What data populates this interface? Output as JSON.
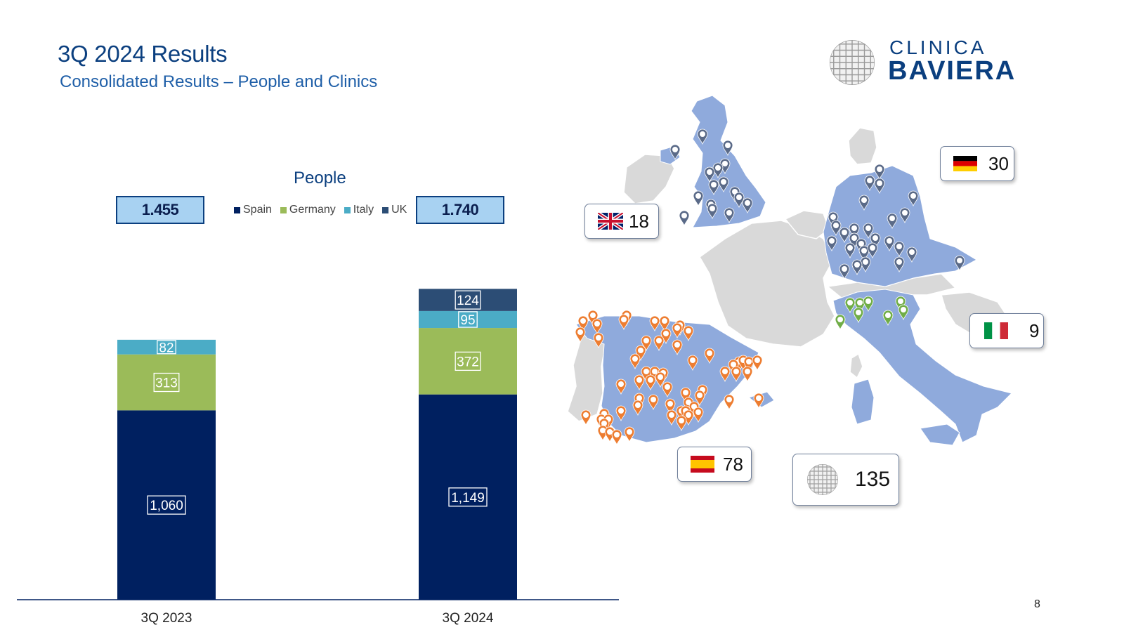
{
  "header": {
    "title": "3Q 2024 Results",
    "subtitle": "Consolidated Results – People and Clinics"
  },
  "logo": {
    "line1": "CLINICA",
    "line2": "BAVIERA"
  },
  "totals": [
    "1.455",
    "1.740"
  ],
  "colors": {
    "spain": "#002060",
    "germany": "#9bbb59",
    "italy": "#4bacc6",
    "uk": "#2c4d75",
    "map_land": "#8faadc",
    "map_other": "#d9d9d9",
    "title": "#0b3f7f"
  },
  "chart_data": {
    "type": "bar",
    "stacked": true,
    "title": "People",
    "categories": [
      "3Q 2023",
      "3Q 2024"
    ],
    "series": [
      {
        "name": "Spain",
        "color": "#002060",
        "values": [
          1060,
          1149
        ],
        "labels": [
          "1,060",
          "1,149"
        ]
      },
      {
        "name": "Germany",
        "color": "#9bbb59",
        "values": [
          313,
          372
        ],
        "labels": [
          "313",
          "372"
        ]
      },
      {
        "name": "Italy",
        "color": "#4bacc6",
        "values": [
          82,
          95
        ],
        "labels": [
          "82",
          "95"
        ]
      },
      {
        "name": "UK",
        "color": "#2c4d75",
        "values": [
          0,
          124
        ],
        "labels": [
          "",
          "124"
        ]
      }
    ],
    "legend_position": "top",
    "grid": false
  },
  "map": {
    "cards": [
      {
        "country": "UK",
        "flag": "uk-flag-icon",
        "count": "18"
      },
      {
        "country": "Germany",
        "flag": "germany-flag-icon",
        "count": "30"
      },
      {
        "country": "Italy",
        "flag": "italy-flag-icon",
        "count": "9"
      },
      {
        "country": "Spain",
        "flag": "spain-flag-icon",
        "count": "78"
      },
      {
        "country": "Total",
        "flag": "globe-logo-icon",
        "count": "135"
      }
    ]
  },
  "page_number": "8"
}
